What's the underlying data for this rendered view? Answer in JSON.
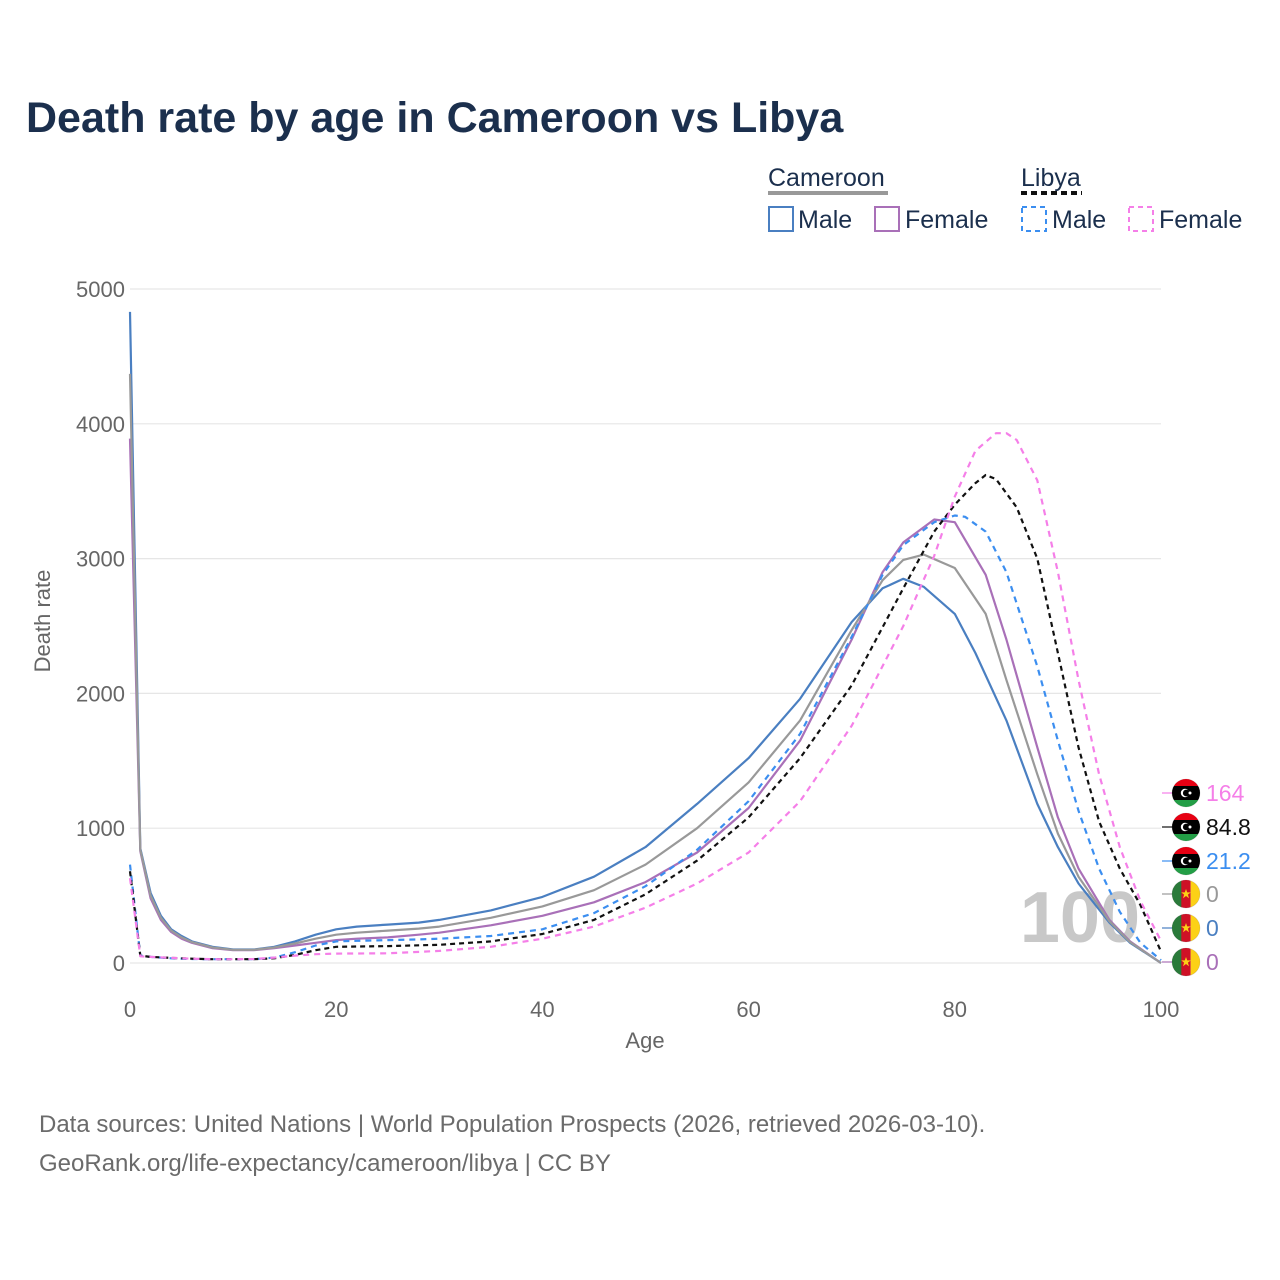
{
  "title": "Death rate by age in Cameroon vs Libya",
  "legend": {
    "groups": [
      {
        "country": "Cameroon",
        "color": "#999999",
        "items": [
          {
            "label": "Male",
            "color": "#4a7fc1"
          },
          {
            "label": "Female",
            "color": "#a970b8"
          }
        ]
      },
      {
        "country": "Libya",
        "color": "#111111",
        "items": [
          {
            "label": "Male",
            "color": "#3b8ef0"
          },
          {
            "label": "Female",
            "color": "#f57fe8"
          }
        ]
      }
    ]
  },
  "watermark": "100",
  "end_labels": [
    {
      "value": "164",
      "color": "#f57fe8",
      "flag": "libya"
    },
    {
      "value": "84.8",
      "color": "#111111",
      "flag": "libya"
    },
    {
      "value": "21.2",
      "color": "#3b8ef0",
      "flag": "libya"
    },
    {
      "value": "0",
      "color": "#999999",
      "flag": "cameroon"
    },
    {
      "value": "0",
      "color": "#4a7fc1",
      "flag": "cameroon"
    },
    {
      "value": "0",
      "color": "#a970b8",
      "flag": "cameroon"
    }
  ],
  "footer": {
    "line1": "Data sources: United Nations | World Population Prospects (2026, retrieved 2026-03-10).",
    "line2": "GeoRank.org/life-expectancy/cameroon/libya | CC BY"
  },
  "chart_data": {
    "type": "line",
    "title": "Death rate by age in Cameroon vs Libya",
    "xlabel": "Age",
    "ylabel": "Death rate",
    "xlim": [
      0,
      100
    ],
    "ylim": [
      0,
      5000
    ],
    "xticks": [
      0,
      20,
      40,
      60,
      80,
      100
    ],
    "yticks": [
      0,
      1000,
      2000,
      3000,
      4000,
      5000
    ],
    "grid": true,
    "series": [
      {
        "name": "Cameroon Male",
        "color": "#4a7fc1",
        "dash": "none",
        "x": [
          0,
          1,
          2,
          3,
          4,
          5,
          6,
          8,
          10,
          12,
          14,
          16,
          18,
          20,
          22,
          25,
          28,
          30,
          35,
          40,
          45,
          50,
          55,
          60,
          65,
          70,
          73,
          75,
          77,
          80,
          82,
          85,
          88,
          90,
          92,
          95,
          97,
          100
        ],
        "y": [
          4830,
          850,
          520,
          350,
          250,
          200,
          160,
          120,
          100,
          100,
          120,
          160,
          210,
          250,
          270,
          285,
          300,
          320,
          390,
          490,
          640,
          860,
          1180,
          1520,
          1960,
          2530,
          2780,
          2850,
          2790,
          2590,
          2300,
          1800,
          1180,
          860,
          590,
          300,
          150,
          0
        ]
      },
      {
        "name": "Cameroon Female",
        "color": "#a970b8",
        "dash": "none",
        "x": [
          0,
          1,
          2,
          3,
          4,
          5,
          6,
          8,
          10,
          12,
          14,
          16,
          18,
          20,
          22,
          25,
          28,
          30,
          35,
          40,
          45,
          50,
          55,
          60,
          65,
          70,
          73,
          75,
          78,
          80,
          83,
          85,
          88,
          90,
          92,
          95,
          97,
          100
        ],
        "y": [
          3890,
          830,
          480,
          320,
          230,
          180,
          150,
          110,
          95,
          95,
          110,
          130,
          150,
          170,
          180,
          190,
          210,
          225,
          280,
          350,
          450,
          600,
          820,
          1150,
          1650,
          2400,
          2900,
          3120,
          3290,
          3270,
          2880,
          2400,
          1600,
          1080,
          700,
          320,
          160,
          0
        ]
      },
      {
        "name": "Cameroon Total",
        "color": "#999999",
        "dash": "none",
        "x": [
          0,
          1,
          2,
          3,
          4,
          5,
          6,
          8,
          10,
          12,
          14,
          16,
          18,
          20,
          22,
          25,
          28,
          30,
          35,
          40,
          45,
          50,
          55,
          60,
          65,
          70,
          73,
          75,
          77,
          80,
          83,
          85,
          88,
          90,
          92,
          95,
          97,
          100
        ],
        "y": [
          4370,
          840,
          500,
          335,
          240,
          190,
          155,
          115,
          98,
          98,
          115,
          145,
          180,
          210,
          225,
          240,
          255,
          270,
          335,
          420,
          540,
          730,
          1000,
          1340,
          1800,
          2470,
          2840,
          2990,
          3030,
          2930,
          2590,
          2100,
          1400,
          960,
          640,
          310,
          155,
          0
        ]
      },
      {
        "name": "Libya Male",
        "color": "#3b8ef0",
        "dash": "6,5",
        "x": [
          0,
          1,
          2,
          3,
          4,
          6,
          8,
          10,
          12,
          14,
          16,
          18,
          20,
          22,
          25,
          28,
          30,
          35,
          40,
          45,
          50,
          55,
          60,
          65,
          70,
          73,
          75,
          78,
          80,
          81,
          83,
          85,
          88,
          90,
          92,
          94,
          96,
          98,
          100
        ],
        "y": [
          730,
          55,
          45,
          40,
          35,
          30,
          28,
          28,
          28,
          40,
          80,
          130,
          160,
          165,
          170,
          175,
          180,
          200,
          250,
          370,
          570,
          840,
          1200,
          1700,
          2420,
          2880,
          3100,
          3270,
          3320,
          3310,
          3200,
          2900,
          2200,
          1650,
          1130,
          700,
          380,
          150,
          21
        ]
      },
      {
        "name": "Libya Total",
        "color": "#111111",
        "dash": "5,4",
        "x": [
          0,
          1,
          2,
          4,
          6,
          8,
          10,
          12,
          14,
          16,
          18,
          20,
          25,
          30,
          35,
          40,
          45,
          50,
          55,
          60,
          65,
          70,
          75,
          78,
          80,
          82,
          83,
          84,
          86,
          88,
          90,
          92,
          94,
          96,
          98,
          100
        ],
        "y": [
          680,
          55,
          45,
          38,
          32,
          28,
          28,
          28,
          35,
          60,
          95,
          120,
          125,
          135,
          160,
          215,
          320,
          510,
          760,
          1080,
          1520,
          2060,
          2780,
          3200,
          3400,
          3560,
          3620,
          3590,
          3380,
          3000,
          2300,
          1600,
          1050,
          700,
          430,
          85
        ]
      },
      {
        "name": "Libya Female",
        "color": "#f57fe8",
        "dash": "6,5",
        "x": [
          0,
          1,
          2,
          4,
          6,
          8,
          10,
          12,
          14,
          16,
          18,
          20,
          25,
          30,
          35,
          40,
          45,
          50,
          55,
          60,
          65,
          70,
          75,
          78,
          80,
          82,
          84,
          85,
          86,
          88,
          90,
          92,
          94,
          96,
          98,
          100
        ],
        "y": [
          630,
          50,
          45,
          38,
          32,
          28,
          28,
          30,
          40,
          55,
          65,
          70,
          72,
          90,
          120,
          180,
          270,
          410,
          590,
          820,
          1200,
          1760,
          2500,
          3020,
          3460,
          3800,
          3930,
          3930,
          3880,
          3580,
          2900,
          2100,
          1400,
          860,
          460,
          164
        ]
      }
    ]
  }
}
